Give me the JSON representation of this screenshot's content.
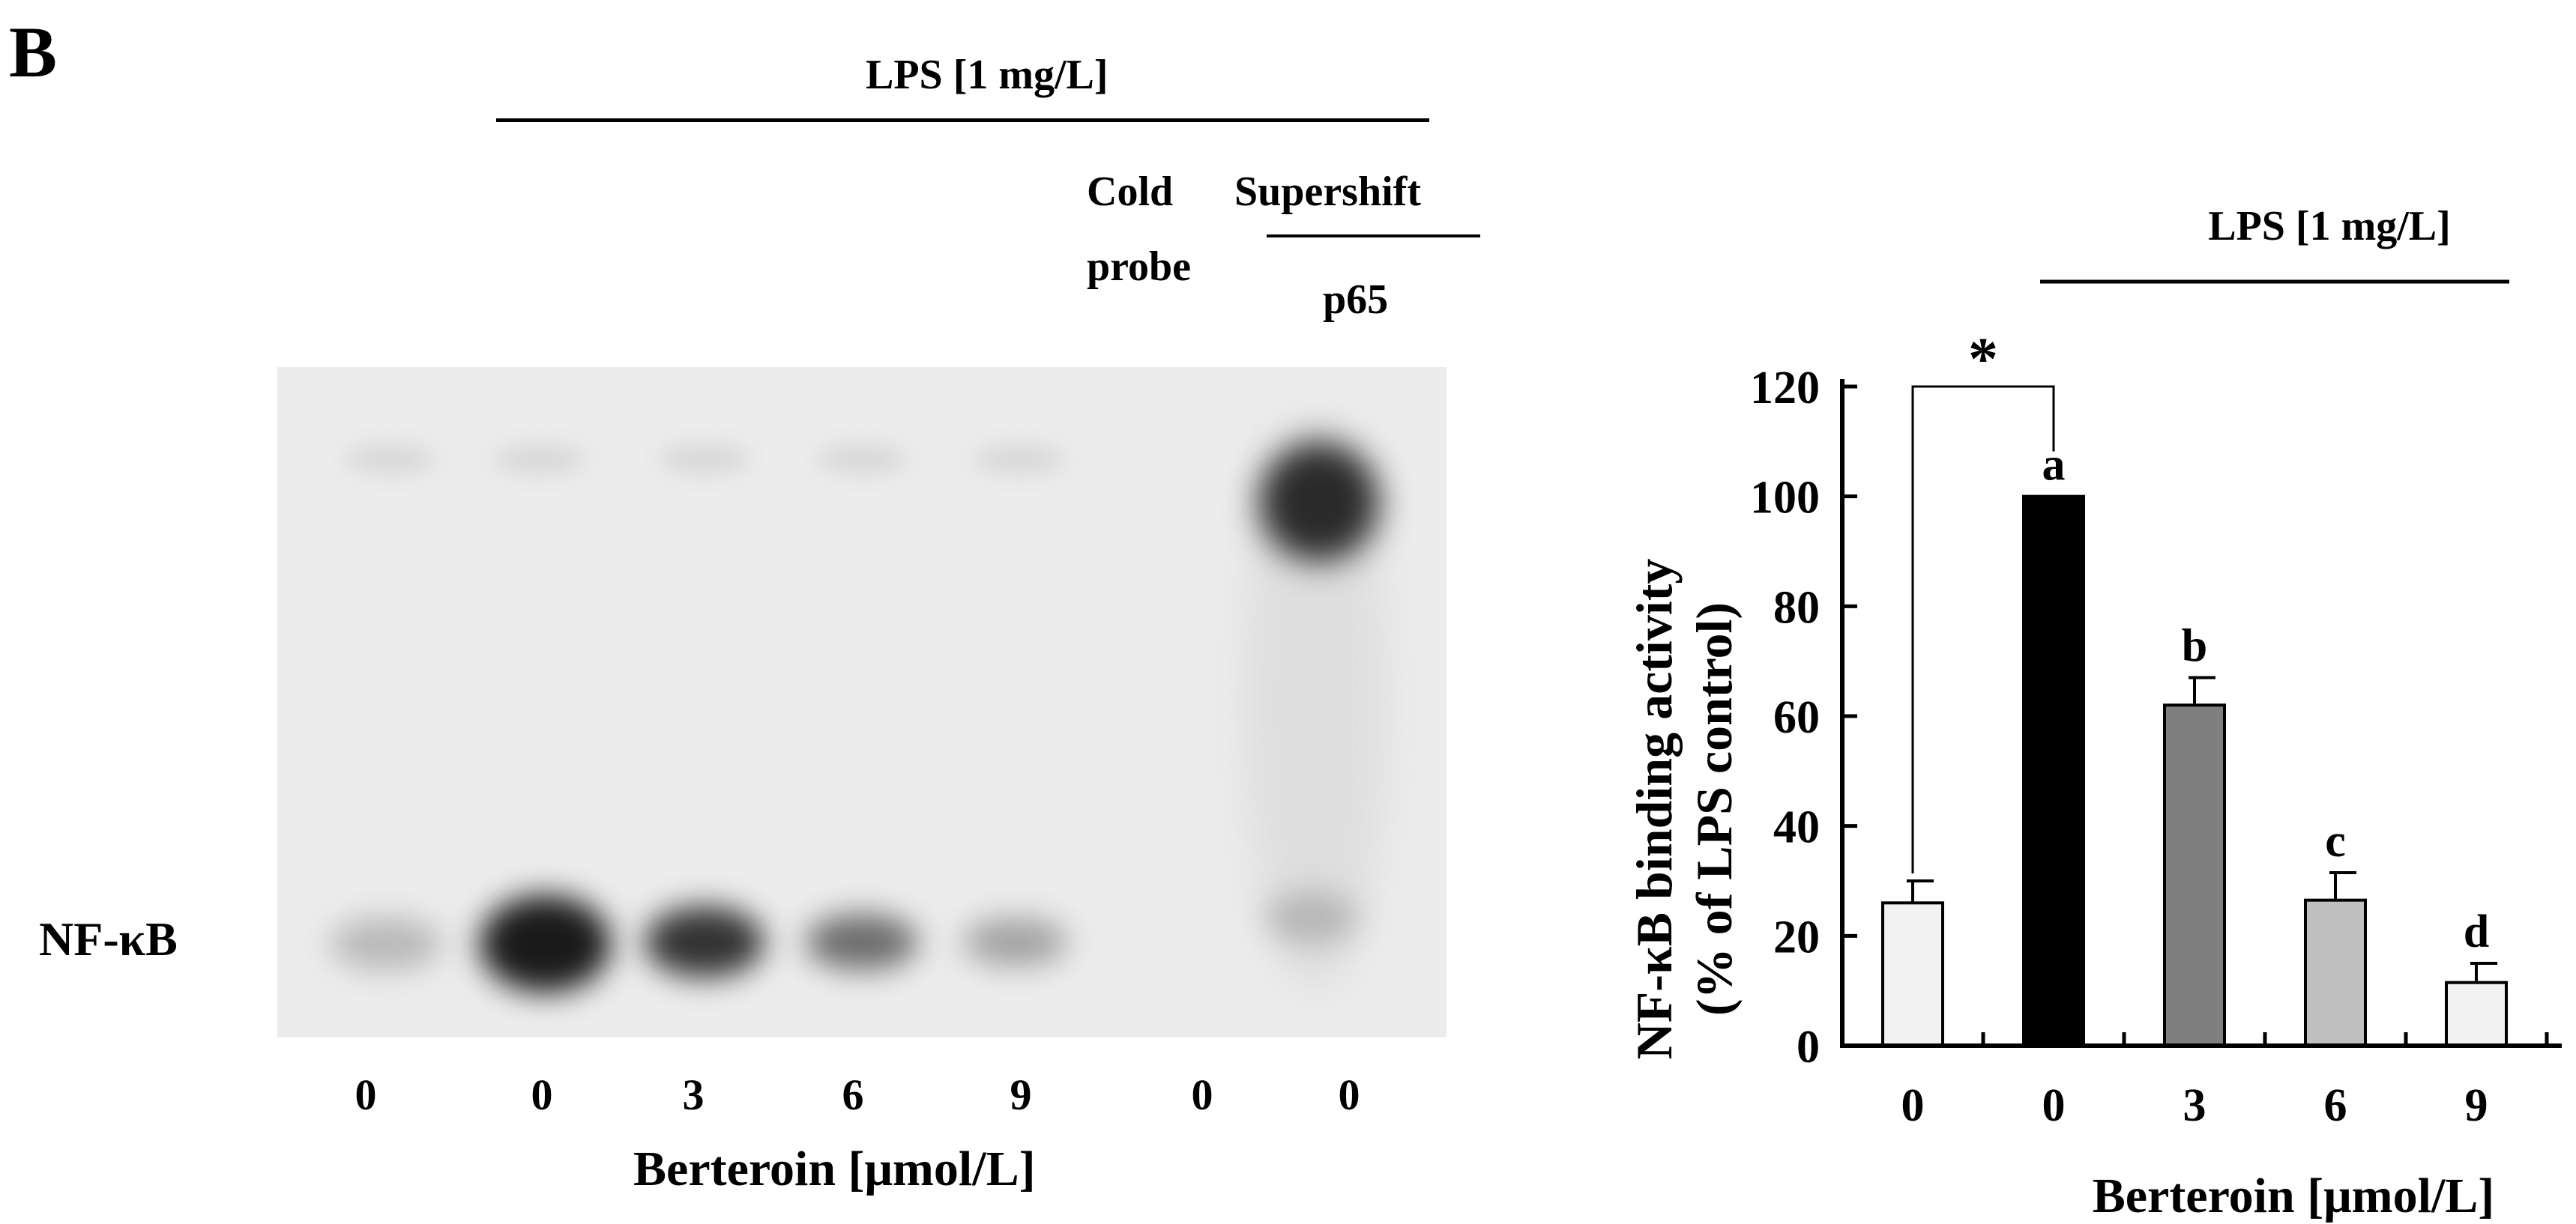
{
  "panel_label": "B",
  "gel": {
    "lps_label": "LPS [1 mg/L]",
    "cold_probe_label_line1": "Cold",
    "cold_probe_label_line2": "probe",
    "supershift_label": "Supershift",
    "supershift_antibody": "p65",
    "band_label": "NF-κB",
    "lane_values": [
      "0",
      "0",
      "3",
      "6",
      "9",
      "0",
      "0"
    ],
    "xlabel": "Berteroin [μmol/L]"
  },
  "chart_data": {
    "type": "bar",
    "categories": [
      "0",
      "0",
      "3",
      "6",
      "9"
    ],
    "values": [
      26,
      100,
      62,
      26.5,
      11.5
    ],
    "errors": [
      4,
      0,
      5,
      5,
      3.5
    ],
    "bar_colors": [
      "#f2f2f2",
      "#000000",
      "#7f7f7f",
      "#bfbfbf",
      "#f2f2f2"
    ],
    "significance_letters": [
      "",
      "a",
      "b",
      "c",
      "d"
    ],
    "significance_marker": "*",
    "lps_label": "LPS [1 mg/L]",
    "title": "",
    "xlabel": "Berteroin [μmol/L]",
    "ylabel_line1": "NF-κB binding activity",
    "ylabel_line2": "(% of LPS control)",
    "ylim": [
      0,
      120
    ],
    "yticks": [
      "0",
      "20",
      "40",
      "60",
      "80",
      "100",
      "120"
    ],
    "grid": false
  }
}
